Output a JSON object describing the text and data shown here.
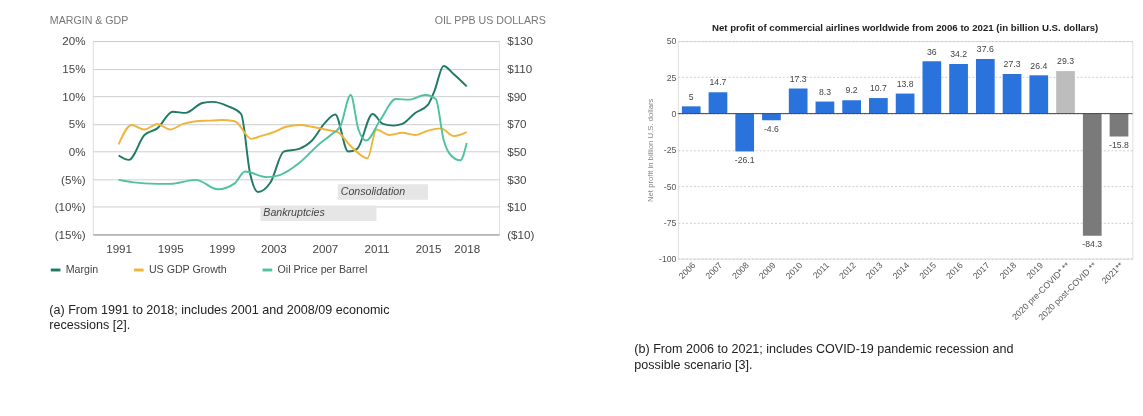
{
  "chart_data": [
    {
      "type": "line",
      "ylabel": "MARGIN & GDP",
      "y2label": "OIL PPB US DOLLARS",
      "xlim": [
        1989,
        2020.5
      ],
      "xticks": [
        1991,
        1995,
        1999,
        2003,
        2007,
        2011,
        2015,
        2018
      ],
      "ylim": [
        -15,
        20
      ],
      "yticks": [
        {
          "value": 20,
          "label": "20%"
        },
        {
          "value": 15,
          "label": "15%"
        },
        {
          "value": 10,
          "label": "10%"
        },
        {
          "value": 5,
          "label": "5%"
        },
        {
          "value": 0,
          "label": "0%"
        },
        {
          "value": -5,
          "label": "(5%)"
        },
        {
          "value": -10,
          "label": "(10%)"
        },
        {
          "value": -15,
          "label": "(15%)"
        }
      ],
      "y2lim": [
        -10,
        130
      ],
      "y2ticks": [
        {
          "value": 130,
          "label": "$130"
        },
        {
          "value": 110,
          "label": "$110"
        },
        {
          "value": 90,
          "label": "$90"
        },
        {
          "value": 70,
          "label": "$70"
        },
        {
          "value": 50,
          "label": "$50"
        },
        {
          "value": 30,
          "label": "$30"
        },
        {
          "value": 10,
          "label": "$10"
        },
        {
          "value": -10,
          "label": "($10)"
        }
      ],
      "grid": "y",
      "legend": "bottom",
      "marker": "none",
      "line_style": "solid",
      "series": [
        {
          "name": "Margin",
          "color": "#1f7a63",
          "x": [
            1991,
            1991.8,
            1993,
            1994,
            1995.2,
            1996.2,
            1997.5,
            1998.3,
            1999.5,
            2000.5,
            2001.2,
            2001.8,
            2002.8,
            2003.8,
            2005,
            2006,
            2007,
            2007.8,
            2008.8,
            2009.5,
            2010.7,
            2011.5,
            2012.3,
            2013,
            2014,
            2015,
            2015.5,
            2016.2,
            2017,
            2018
          ],
          "values": [
            -0.7,
            -1.5,
            3,
            4.2,
            7.2,
            7,
            8.8,
            9,
            8.2,
            6.8,
            -4,
            -7.3,
            -5.5,
            0,
            0.5,
            2,
            5.2,
            6.7,
            0,
            0.5,
            6.8,
            5,
            4.7,
            5,
            7,
            8.5,
            11,
            15.5,
            14,
            11.8
          ]
        },
        {
          "name": "US GDP Growth",
          "color": "#f0b43c",
          "x": [
            1991,
            1992,
            1993,
            1994,
            1995,
            1996,
            1997,
            1998,
            1999,
            2000,
            2001.3,
            2002,
            2003,
            2004,
            2005,
            2006,
            2007,
            2008,
            2009,
            2010.3,
            2011,
            2012,
            2013,
            2014,
            2015,
            2016,
            2017,
            2018
          ],
          "values": [
            1.3,
            4.8,
            4,
            5,
            4,
            5,
            5.5,
            5.6,
            5.7,
            5.5,
            2.3,
            2.8,
            3.5,
            4.5,
            4.8,
            4.5,
            4,
            3.5,
            1,
            -1.2,
            4,
            3,
            3.4,
            3,
            3.8,
            4.2,
            2.8,
            3.5
          ]
        },
        {
          "name": "Oil Price per Barrel",
          "color": "#4fc2a0",
          "axis": "y2",
          "x": [
            1991,
            1993,
            1995,
            1997,
            1998.7,
            2000,
            2000.8,
            2002.5,
            2003.5,
            2005,
            2006.5,
            2007.5,
            2008.2,
            2009,
            2009.6,
            2010.2,
            2011.3,
            2012.5,
            2013.5,
            2014.8,
            2015.6,
            2016.2,
            2016.8,
            2017.5,
            2018
          ],
          "values": [
            29.5,
            27,
            26.6,
            29.5,
            22.7,
            27,
            35.6,
            31.5,
            33,
            41.7,
            55,
            62.4,
            68.5,
            91,
            66,
            58,
            73,
            88,
            87.6,
            91,
            88,
            58.8,
            47,
            43.7,
            56.3
          ]
        }
      ],
      "bands": [
        {
          "axis": "x",
          "from": 2008,
          "to": 2015,
          "label": "Consolidation",
          "color": "#e6e6e6"
        },
        {
          "axis": "x",
          "from": 2002,
          "to": 2011,
          "label": "Bankruptcies",
          "color": "#e6e6e6"
        }
      ],
      "annotations": [
        "(a) From 1991 to 2018; includes 2001 and 2008/09 economic recessions [2]."
      ]
    },
    {
      "type": "bar",
      "title": "Net profit of commercial airlines worldwide from 2006 to 2021 (in billion U.S. dollars)",
      "ylabel": "Net profit in billion U.S. dollars",
      "categories": [
        "2006",
        "2007",
        "2008",
        "2009",
        "2010",
        "2011",
        "2012",
        "2013",
        "2014",
        "2015",
        "2016",
        "2017",
        "2018",
        "2019",
        "2020 pre-COVID* **",
        "2020 post-COVID **",
        "2021**"
      ],
      "values": [
        5,
        14.7,
        -26.1,
        -4.6,
        17.3,
        8.3,
        9.2,
        10.7,
        13.8,
        36,
        34.2,
        37.6,
        27.3,
        26.4,
        29.3,
        -84.3,
        -15.8
      ],
      "colors": [
        "#2a73dd",
        "#2a73dd",
        "#2a73dd",
        "#2a73dd",
        "#2a73dd",
        "#2a73dd",
        "#2a73dd",
        "#2a73dd",
        "#2a73dd",
        "#2a73dd",
        "#2a73dd",
        "#2a73dd",
        "#2a73dd",
        "#2a73dd",
        "#bdbdbd",
        "#7a7a7a",
        "#7a7a7a"
      ],
      "ylim": [
        -100,
        50
      ],
      "yticks": [
        -100,
        -75,
        -50,
        -25,
        0,
        25,
        50
      ],
      "grid": "y",
      "data_labels": true,
      "annotations": [
        "(b) From 2006 to 2021; includes COVID-19 pandemic recession and possible scenario [3]."
      ]
    }
  ]
}
